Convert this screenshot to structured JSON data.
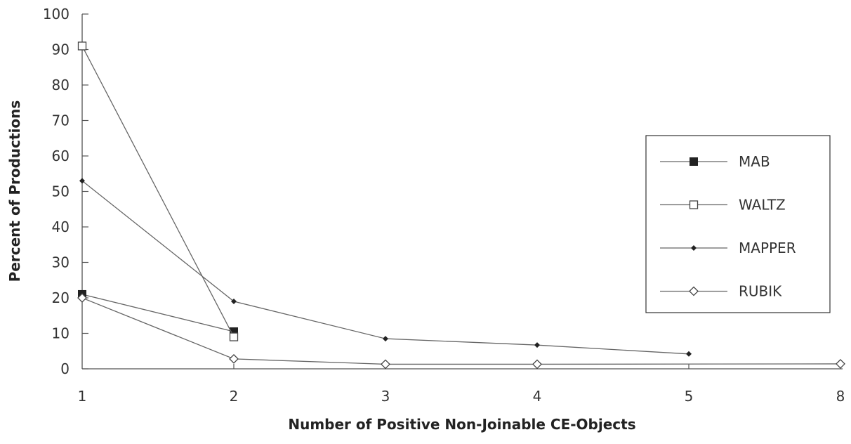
{
  "chart_data": {
    "type": "line",
    "title": "",
    "xlabel": "Number of Positive Non-Joinable CE-Objects",
    "ylabel": "Percent of Productions",
    "x": [
      "1",
      "2",
      "3",
      "4",
      "5",
      "8"
    ],
    "ylim": [
      0,
      100
    ],
    "yticks": [
      "0",
      "10",
      "20",
      "30",
      "40",
      "50",
      "60",
      "70",
      "80",
      "90",
      "100"
    ],
    "grid": false,
    "legend_position": "right",
    "series": [
      {
        "name": "MAB",
        "marker": "filled-square",
        "values": [
          21,
          10.5,
          null,
          null,
          null,
          null
        ]
      },
      {
        "name": "WALTZ",
        "marker": "open-square",
        "values": [
          91,
          9,
          null,
          null,
          null,
          null
        ]
      },
      {
        "name": "MAPPER",
        "marker": "filled-diamond",
        "values": [
          53,
          19,
          8.5,
          6.7,
          4.2,
          null
        ]
      },
      {
        "name": "RUBIK",
        "marker": "open-diamond",
        "values": [
          20,
          2.8,
          1.3,
          1.3,
          null,
          1.4
        ]
      }
    ]
  }
}
